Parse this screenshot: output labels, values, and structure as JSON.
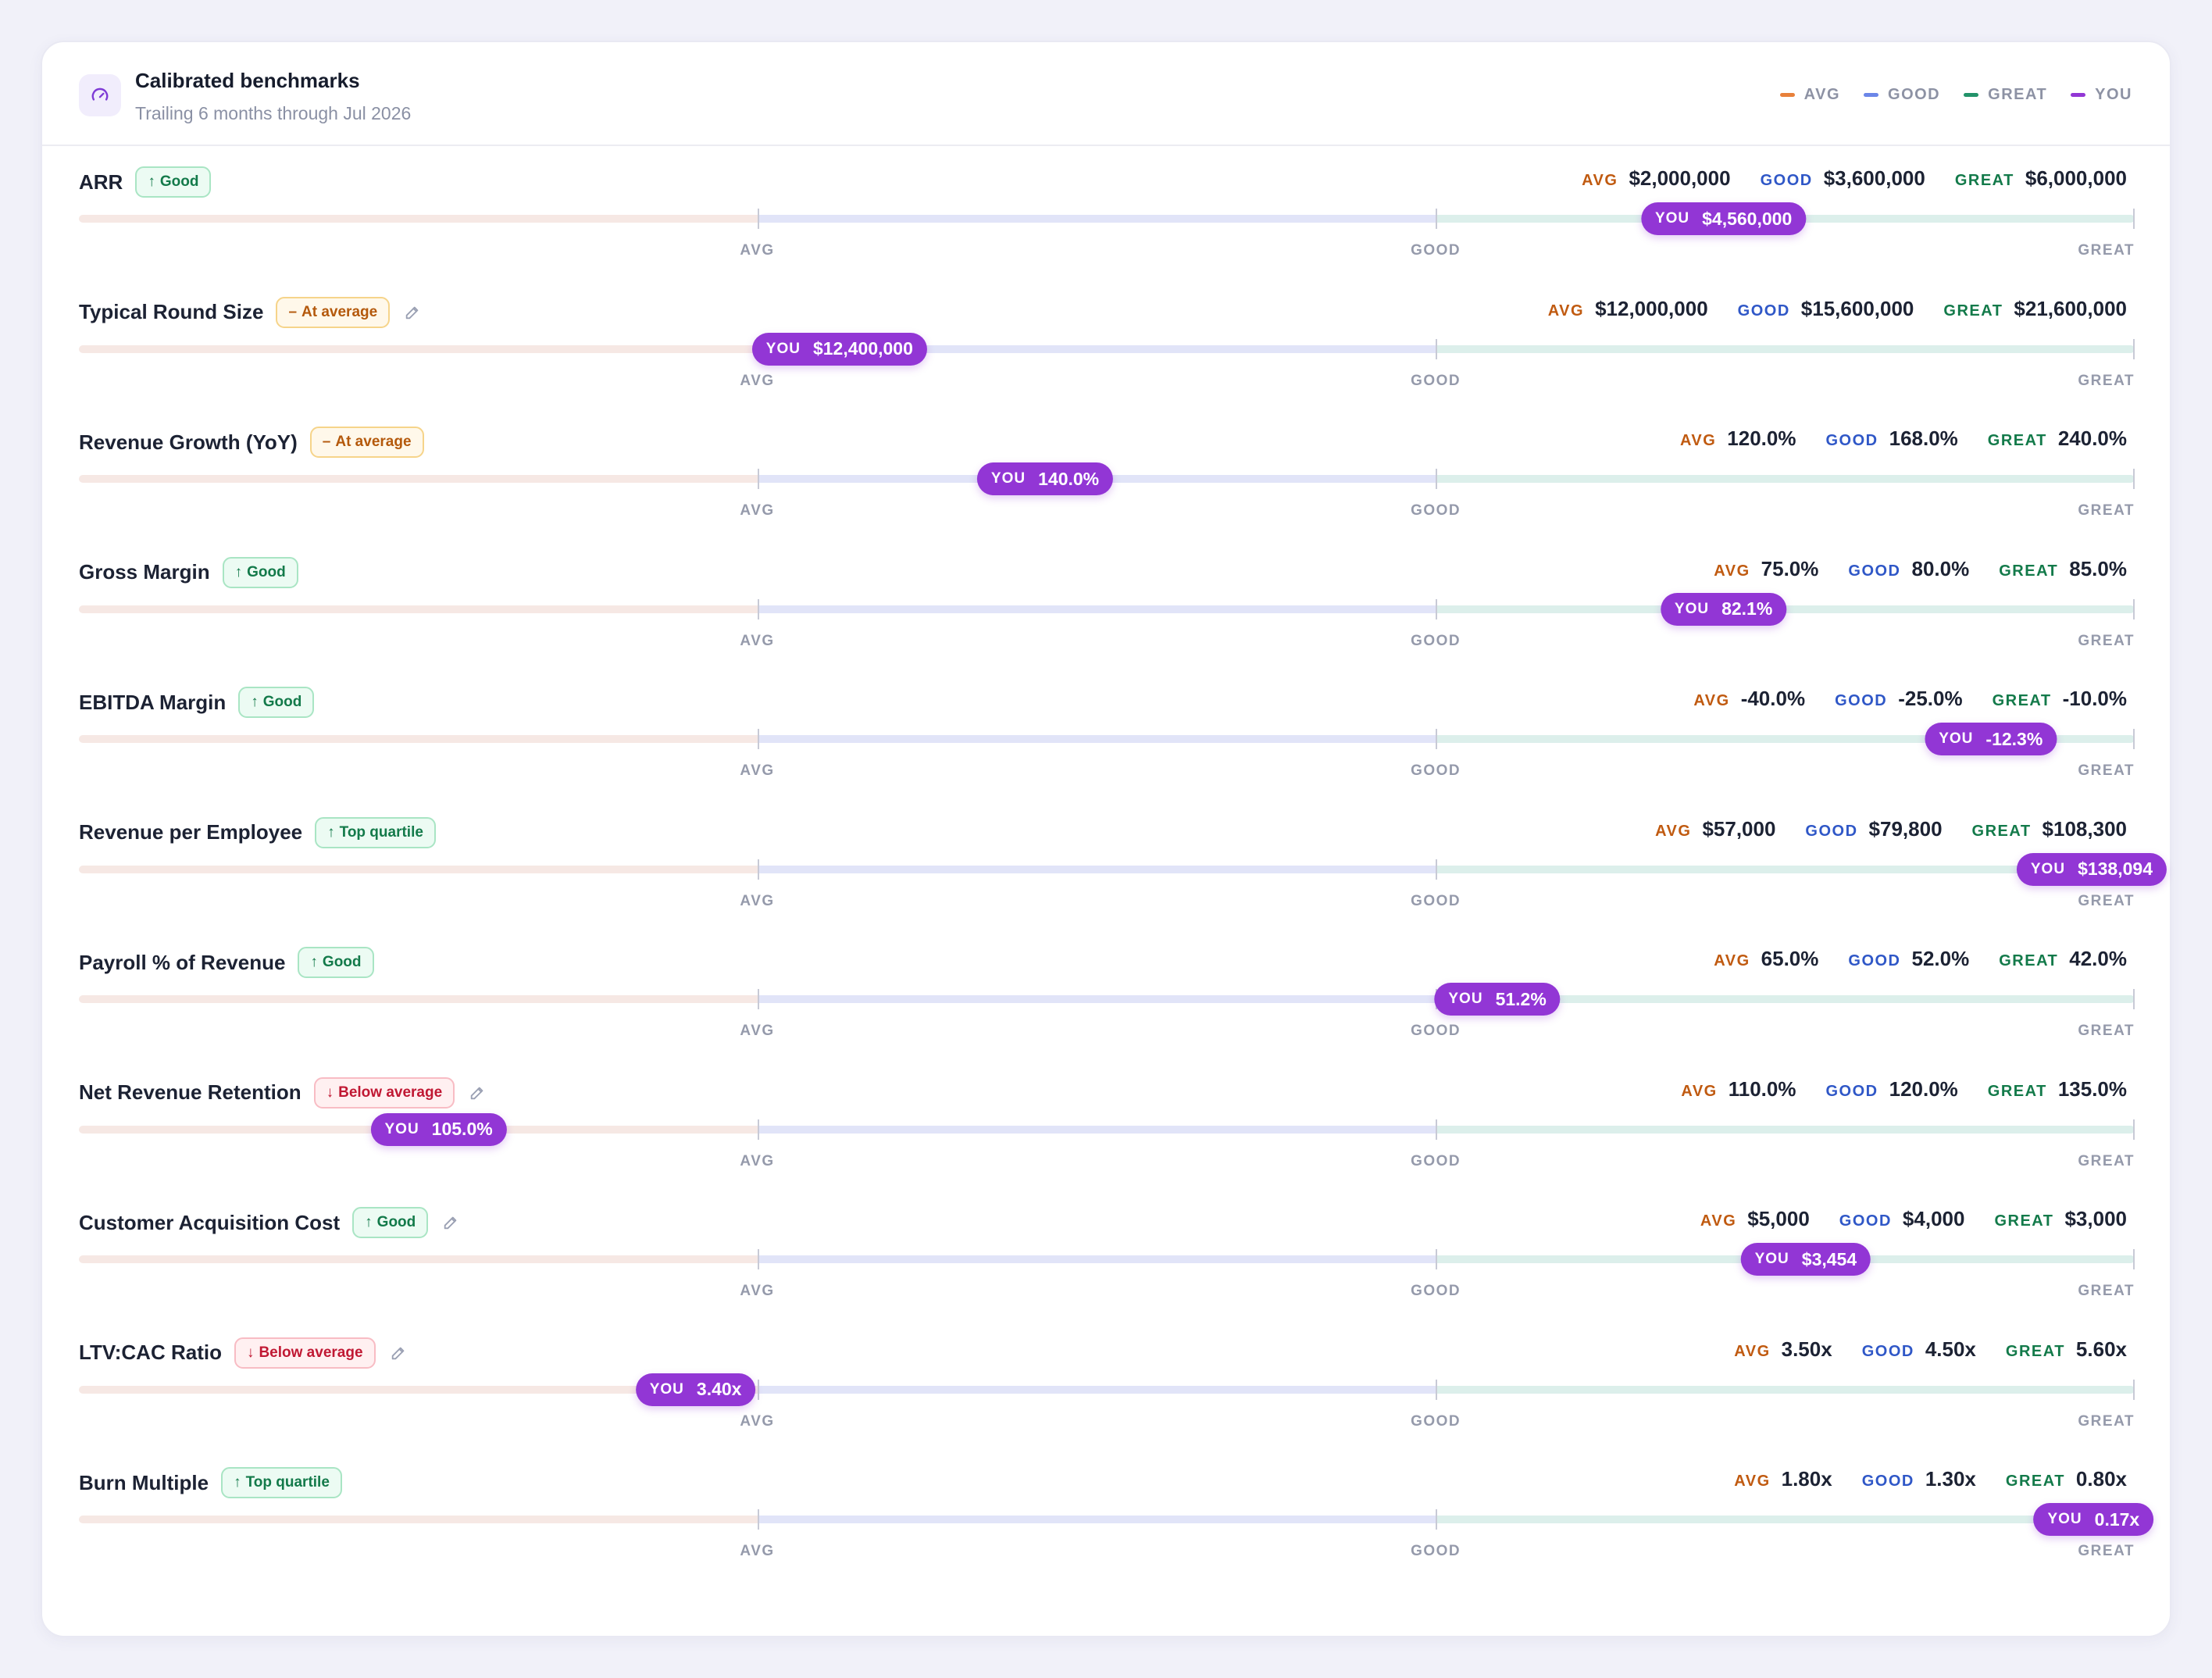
{
  "header": {
    "title": "Calibrated benchmarks",
    "subtitle": "Trailing 6 months through Jul 2026",
    "icon": "gauge-icon"
  },
  "legend": [
    {
      "label": "AVG",
      "color": "#e8803a"
    },
    {
      "label": "GOOD",
      "color": "#6b86e8"
    },
    {
      "label": "GREAT",
      "color": "#23936a"
    },
    {
      "label": "YOU",
      "color": "#9236d5"
    }
  ],
  "labels": {
    "avg": "AVG",
    "good": "GOOD",
    "great": "GREAT",
    "you": "YOU"
  },
  "metrics": [
    {
      "name": "ARR",
      "badge": "Good",
      "badge_type": "good",
      "arrow": "↑",
      "editable": false,
      "avg": "$2,000,000",
      "good": "$3,600,000",
      "great": "$6,000,000",
      "you": "$4,560,000",
      "position": 0.8
    },
    {
      "name": "Typical Round Size",
      "badge": "At average",
      "badge_type": "avg",
      "arrow": "–",
      "editable": true,
      "avg": "$12,000,000",
      "good": "$15,600,000",
      "great": "$21,600,000",
      "you": "$12,400,000",
      "position": 0.37
    },
    {
      "name": "Revenue Growth (YoY)",
      "badge": "At average",
      "badge_type": "avg",
      "arrow": "–",
      "editable": false,
      "avg": "120.0%",
      "good": "168.0%",
      "great": "240.0%",
      "you": "140.0%",
      "position": 0.47
    },
    {
      "name": "Gross Margin",
      "badge": "Good",
      "badge_type": "good",
      "arrow": "↑",
      "editable": false,
      "avg": "75.0%",
      "good": "80.0%",
      "great": "85.0%",
      "you": "82.1%",
      "position": 0.8
    },
    {
      "name": "EBITDA Margin",
      "badge": "Good",
      "badge_type": "good",
      "arrow": "↑",
      "editable": false,
      "avg": "-40.0%",
      "good": "-25.0%",
      "great": "-10.0%",
      "you": "-12.3%",
      "position": 0.93
    },
    {
      "name": "Revenue per Employee",
      "badge": "Top quartile",
      "badge_type": "good",
      "arrow": "↑",
      "editable": false,
      "avg": "$57,000",
      "good": "$79,800",
      "great": "$108,300",
      "you": "$138,094",
      "position": 0.99
    },
    {
      "name": "Payroll % of Revenue",
      "badge": "Good",
      "badge_type": "good",
      "arrow": "↑",
      "editable": false,
      "avg": "65.0%",
      "good": "52.0%",
      "great": "42.0%",
      "you": "51.2%",
      "position": 0.69
    },
    {
      "name": "Net Revenue Retention",
      "badge": "Below average",
      "badge_type": "below",
      "arrow": "↓",
      "editable": true,
      "avg": "110.0%",
      "good": "120.0%",
      "great": "135.0%",
      "you": "105.0%",
      "position": 0.175
    },
    {
      "name": "Customer Acquisition Cost",
      "badge": "Good",
      "badge_type": "good",
      "arrow": "↑",
      "editable": true,
      "avg": "$5,000",
      "good": "$4,000",
      "great": "$3,000",
      "you": "$3,454",
      "position": 0.84
    },
    {
      "name": "LTV:CAC Ratio",
      "badge": "Below average",
      "badge_type": "below",
      "arrow": "↓",
      "editable": true,
      "avg": "3.50x",
      "good": "4.50x",
      "great": "5.60x",
      "you": "3.40x",
      "position": 0.3
    },
    {
      "name": "Burn Multiple",
      "badge": "Top quartile",
      "badge_type": "good",
      "arrow": "↑",
      "editable": false,
      "avg": "1.80x",
      "good": "1.30x",
      "great": "0.80x",
      "you": "0.17x",
      "position": 0.98
    }
  ]
}
